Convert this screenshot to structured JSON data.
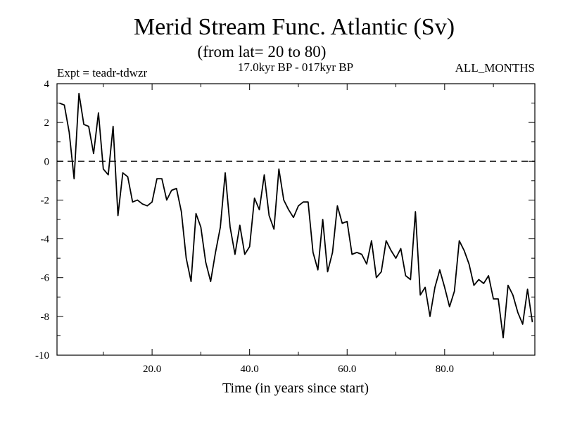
{
  "chart_data": {
    "type": "line",
    "title": "Merid Stream Func. Atlantic (Sv)",
    "subtitle": "(from lat= 20 to 80)",
    "experiment": "Expt = teadr-tdwzr",
    "period": "17.0kyr BP - 017kyr BP",
    "months": "ALL_MONTHS",
    "xlabel": "Time (in years since start)",
    "ylabel": "",
    "xlim": [
      0.5,
      98.5
    ],
    "ylim": [
      -10,
      4
    ],
    "x_ticks": [
      20,
      40,
      60,
      80
    ],
    "x_tick_labels": [
      "20.0",
      "40.0",
      "60.0",
      "80.0"
    ],
    "y_ticks": [
      4,
      2,
      0,
      -2,
      -4,
      -6,
      -8,
      -10
    ],
    "y_tick_labels": [
      "4",
      "2",
      "0",
      "-2",
      "-4",
      "-6",
      "-8",
      "-10"
    ],
    "zero_line": true,
    "series": [
      {
        "name": "stream function",
        "x": [
          1,
          2,
          3,
          4,
          5,
          6,
          7,
          8,
          9,
          10,
          11,
          12,
          13,
          14,
          15,
          16,
          17,
          18,
          19,
          20,
          21,
          22,
          23,
          24,
          25,
          26,
          27,
          28,
          29,
          30,
          31,
          32,
          33,
          34,
          35,
          36,
          37,
          38,
          39,
          40,
          41,
          42,
          43,
          44,
          45,
          46,
          47,
          48,
          49,
          50,
          51,
          52,
          53,
          54,
          55,
          56,
          57,
          58,
          59,
          60,
          61,
          62,
          63,
          64,
          65,
          66,
          67,
          68,
          69,
          70,
          71,
          72,
          73,
          74,
          75,
          76,
          77,
          78,
          79,
          80,
          81,
          82,
          83,
          84,
          85,
          86,
          87,
          88,
          89,
          90,
          91,
          92,
          93,
          94,
          95,
          96,
          97,
          98
        ],
        "values": [
          3.0,
          2.9,
          1.5,
          -0.9,
          3.5,
          1.9,
          1.8,
          0.4,
          2.5,
          -0.4,
          -0.7,
          1.8,
          -2.8,
          -0.6,
          -0.8,
          -2.1,
          -2.0,
          -2.2,
          -2.3,
          -2.1,
          -0.9,
          -0.9,
          -2.0,
          -1.5,
          -1.4,
          -2.6,
          -5.0,
          -6.2,
          -2.7,
          -3.4,
          -5.2,
          -6.2,
          -4.7,
          -3.4,
          -0.6,
          -3.4,
          -4.8,
          -3.3,
          -4.8,
          -4.4,
          -1.9,
          -2.5,
          -0.7,
          -2.8,
          -3.5,
          -0.4,
          -2.0,
          -2.5,
          -2.9,
          -2.3,
          -2.1,
          -2.1,
          -4.7,
          -5.6,
          -3.0,
          -5.7,
          -4.7,
          -2.3,
          -3.2,
          -3.1,
          -4.8,
          -4.7,
          -4.8,
          -5.3,
          -4.1,
          -6.0,
          -5.7,
          -4.1,
          -4.6,
          -5.0,
          -4.5,
          -5.9,
          -6.1,
          -2.6,
          -6.9,
          -6.5,
          -8.0,
          -6.5,
          -5.6,
          -6.5,
          -7.5,
          -6.7,
          -4.1,
          -4.6,
          -5.3,
          -6.4,
          -6.1,
          -6.3,
          -5.9,
          -7.1,
          -7.1,
          -9.1,
          -6.4,
          -6.9,
          -7.8,
          -8.4,
          -6.6,
          -8.3
        ]
      }
    ]
  },
  "style": {
    "line_color": "#000000",
    "background": "#ffffff"
  }
}
